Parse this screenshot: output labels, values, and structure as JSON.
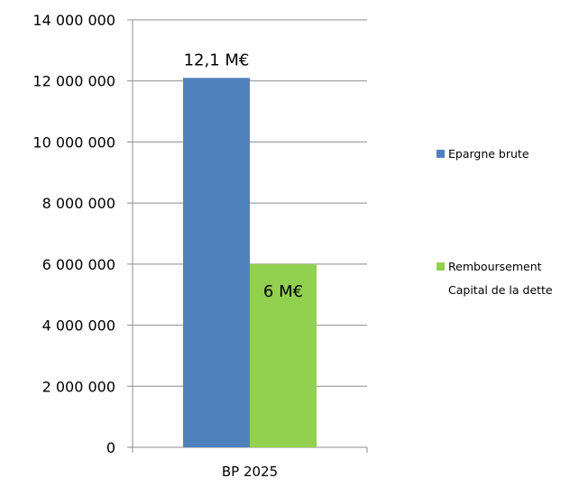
{
  "chart_data": {
    "type": "bar",
    "categories": [
      "BP 2025"
    ],
    "series": [
      {
        "name": "Epargne brute",
        "values": [
          12100000
        ],
        "color": "#4f81bd",
        "data_label": "12,1 M€"
      },
      {
        "name": "Remboursement Capital de la dette",
        "values": [
          6000000
        ],
        "color": "#92d050",
        "data_label": "6 M€"
      }
    ],
    "legend_lines": [
      [
        "Epargne brute"
      ],
      [
        "Remboursement",
        "Capital de la dette"
      ]
    ],
    "y_ticks": [
      "0",
      "2 000 000",
      "4 000 000",
      "6 000 000",
      "8 000 000",
      "10 000 000",
      "12 000 000",
      "14 000 000"
    ],
    "ylim": [
      0,
      14000000
    ],
    "y_step": 2000000,
    "grid": true,
    "legend_position": "right",
    "title": "",
    "xlabel": "",
    "ylabel": ""
  }
}
